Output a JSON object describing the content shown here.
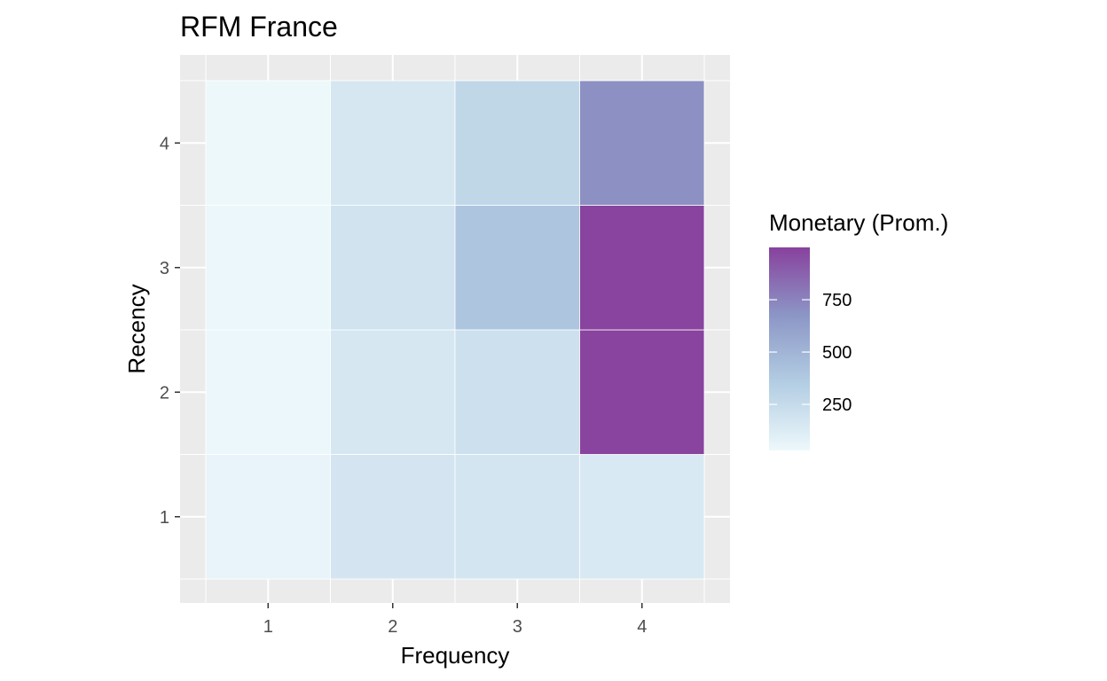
{
  "chart_data": {
    "type": "heatmap",
    "title": "RFM France",
    "xlabel": "Frequency",
    "ylabel": "Recency",
    "x_categories": [
      "1",
      "2",
      "3",
      "4"
    ],
    "y_categories": [
      "1",
      "2",
      "3",
      "4"
    ],
    "cells": [
      {
        "x": "1",
        "y": "1",
        "value": 60
      },
      {
        "x": "2",
        "y": "1",
        "value": 170
      },
      {
        "x": "3",
        "y": "1",
        "value": 175
      },
      {
        "x": "4",
        "y": "1",
        "value": 140
      },
      {
        "x": "1",
        "y": "2",
        "value": 35
      },
      {
        "x": "2",
        "y": "2",
        "value": 160
      },
      {
        "x": "3",
        "y": "2",
        "value": 210
      },
      {
        "x": "4",
        "y": "2",
        "value": 990
      },
      {
        "x": "1",
        "y": "3",
        "value": 40
      },
      {
        "x": "2",
        "y": "3",
        "value": 190
      },
      {
        "x": "3",
        "y": "3",
        "value": 400
      },
      {
        "x": "4",
        "y": "3",
        "value": 990
      },
      {
        "x": "1",
        "y": "4",
        "value": 30
      },
      {
        "x": "2",
        "y": "4",
        "value": 160
      },
      {
        "x": "3",
        "y": "4",
        "value": 280
      },
      {
        "x": "4",
        "y": "4",
        "value": 700
      }
    ],
    "legend": {
      "title": "Monetary (Prom.)",
      "breaks": [
        250,
        500,
        750
      ],
      "break_labels": [
        "250",
        "500",
        "750"
      ],
      "range": [
        30,
        1000
      ],
      "colors": [
        "#edf8fb",
        "#b3cde3",
        "#8c96c6",
        "#88419d"
      ],
      "placement": "right"
    },
    "grid": true,
    "panel_background": "#ebebeb",
    "grid_color": "#ffffff"
  }
}
